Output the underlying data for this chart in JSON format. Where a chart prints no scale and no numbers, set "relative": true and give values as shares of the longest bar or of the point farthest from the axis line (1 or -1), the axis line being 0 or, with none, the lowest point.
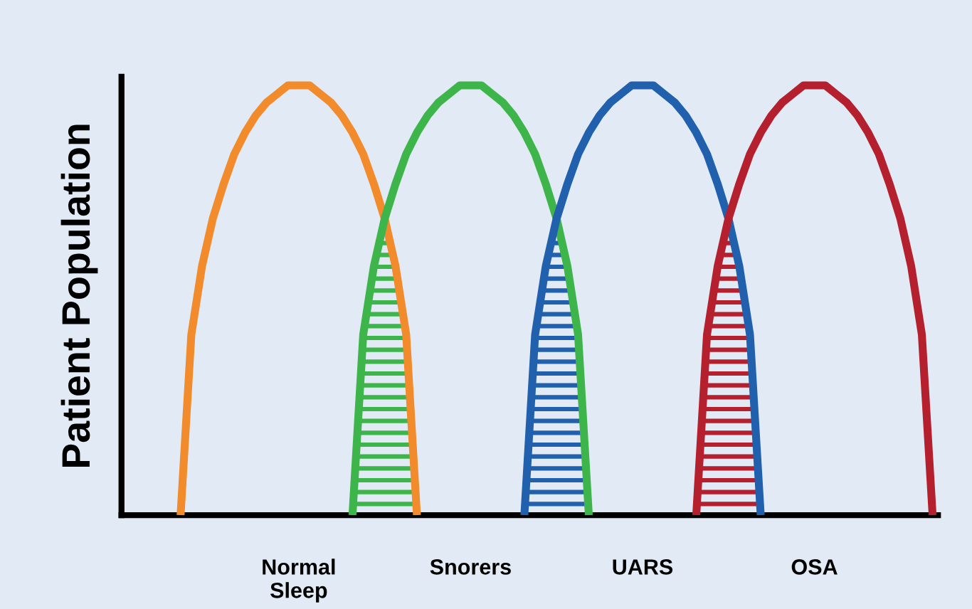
{
  "chart_data": {
    "type": "line",
    "relative": true,
    "ylabel": "Patient Population",
    "grid": false,
    "marker": "none",
    "line_style": "solid",
    "categories": [
      null,
      null,
      null,
      null,
      null,
      null,
      null,
      null,
      null,
      null,
      null,
      null,
      null,
      null,
      null,
      null,
      "Normal\nSleep",
      null,
      null,
      null,
      null,
      null,
      null,
      null,
      null,
      null,
      null,
      null,
      null,
      null,
      null,
      null,
      "Snorers",
      null,
      null,
      null,
      null,
      null,
      null,
      null,
      null,
      null,
      null,
      null,
      null,
      null,
      null,
      null,
      "UARS",
      null,
      null,
      null,
      null,
      null,
      null,
      null,
      null,
      null,
      null,
      null,
      null,
      null,
      null,
      null,
      "OSA",
      null,
      null,
      null,
      null,
      null,
      null,
      null,
      null,
      null,
      null,
      null
    ],
    "series": [
      {
        "type": "area",
        "color": "#3db54a",
        "values": [
          null,
          null,
          null,
          null,
          null,
          null,
          null,
          null,
          null,
          null,
          null,
          null,
          null,
          null,
          null,
          null,
          null,
          null,
          null,
          null,
          null,
          0,
          0.42,
          0.58,
          0.69,
          0.58,
          0.42,
          0,
          null,
          null,
          null,
          null,
          null,
          null,
          null,
          null,
          null,
          null,
          null,
          null,
          null,
          null,
          null,
          null,
          null,
          null,
          null,
          null,
          null,
          null,
          null,
          null,
          null,
          null,
          null,
          null,
          null,
          null,
          null,
          null,
          null,
          null,
          null,
          null,
          null,
          null,
          null,
          null,
          null,
          null,
          null,
          null,
          null,
          null,
          null,
          null
        ]
      },
      {
        "type": "area",
        "color": "#2060ac",
        "values": [
          null,
          null,
          null,
          null,
          null,
          null,
          null,
          null,
          null,
          null,
          null,
          null,
          null,
          null,
          null,
          null,
          null,
          null,
          null,
          null,
          null,
          null,
          null,
          null,
          null,
          null,
          null,
          null,
          null,
          null,
          null,
          null,
          null,
          null,
          null,
          null,
          null,
          0,
          0.42,
          0.58,
          0.69,
          0.58,
          0.42,
          0,
          null,
          null,
          null,
          null,
          null,
          null,
          null,
          null,
          null,
          null,
          null,
          null,
          null,
          null,
          null,
          null,
          null,
          null,
          null,
          null,
          null,
          null,
          null,
          null,
          null,
          null,
          null,
          null,
          null,
          null,
          null,
          null
        ]
      },
      {
        "type": "area",
        "color": "#b5202e",
        "values": [
          null,
          null,
          null,
          null,
          null,
          null,
          null,
          null,
          null,
          null,
          null,
          null,
          null,
          null,
          null,
          null,
          null,
          null,
          null,
          null,
          null,
          null,
          null,
          null,
          null,
          null,
          null,
          null,
          null,
          null,
          null,
          null,
          null,
          null,
          null,
          null,
          null,
          null,
          null,
          null,
          null,
          null,
          null,
          null,
          null,
          null,
          null,
          null,
          null,
          null,
          null,
          null,
          null,
          0,
          0.42,
          0.58,
          0.69,
          0.58,
          0.42,
          0,
          null,
          null,
          null,
          null,
          null,
          null,
          null,
          null,
          null,
          null,
          null,
          null,
          null,
          null,
          null,
          null
        ]
      },
      {
        "color": "#f28b2c",
        "values": [
          null,
          null,
          null,
          null,
          null,
          0,
          0.42,
          0.58,
          0.69,
          0.77,
          0.84,
          0.89,
          0.93,
          0.96,
          0.98,
          1,
          1,
          1,
          0.98,
          0.96,
          0.93,
          0.89,
          0.84,
          0.77,
          0.69,
          0.58,
          0.42,
          0,
          null,
          null,
          null,
          null,
          null,
          null,
          null,
          null,
          null,
          null,
          null,
          null,
          null,
          null,
          null,
          null,
          null,
          null,
          null,
          null,
          null,
          null,
          null,
          null,
          null,
          null,
          null,
          null,
          null,
          null,
          null,
          null,
          null,
          null,
          null,
          null,
          null,
          null,
          null,
          null,
          null,
          null,
          null,
          null,
          null,
          null,
          null,
          null
        ]
      },
      {
        "color": "#3db54a",
        "values": [
          null,
          null,
          null,
          null,
          null,
          null,
          null,
          null,
          null,
          null,
          null,
          null,
          null,
          null,
          null,
          null,
          null,
          null,
          null,
          null,
          null,
          0,
          0.42,
          0.58,
          0.69,
          0.77,
          0.84,
          0.89,
          0.93,
          0.96,
          0.98,
          1,
          1,
          1,
          0.98,
          0.96,
          0.93,
          0.89,
          0.84,
          0.77,
          0.69,
          0.58,
          0.42,
          0,
          null,
          null,
          null,
          null,
          null,
          null,
          null,
          null,
          null,
          null,
          null,
          null,
          null,
          null,
          null,
          null,
          null,
          null,
          null,
          null,
          null,
          null,
          null,
          null,
          null,
          null,
          null,
          null,
          null,
          null,
          null,
          null
        ]
      },
      {
        "color": "#2060ac",
        "values": [
          null,
          null,
          null,
          null,
          null,
          null,
          null,
          null,
          null,
          null,
          null,
          null,
          null,
          null,
          null,
          null,
          null,
          null,
          null,
          null,
          null,
          null,
          null,
          null,
          null,
          null,
          null,
          null,
          null,
          null,
          null,
          null,
          null,
          null,
          null,
          null,
          null,
          0,
          0.42,
          0.58,
          0.69,
          0.77,
          0.84,
          0.89,
          0.93,
          0.96,
          0.98,
          1,
          1,
          1,
          0.98,
          0.96,
          0.93,
          0.89,
          0.84,
          0.77,
          0.69,
          0.58,
          0.42,
          0,
          null,
          null,
          null,
          null,
          null,
          null,
          null,
          null,
          null,
          null,
          null,
          null,
          null,
          null,
          null,
          null
        ]
      },
      {
        "color": "#b5202e",
        "values": [
          null,
          null,
          null,
          null,
          null,
          null,
          null,
          null,
          null,
          null,
          null,
          null,
          null,
          null,
          null,
          null,
          null,
          null,
          null,
          null,
          null,
          null,
          null,
          null,
          null,
          null,
          null,
          null,
          null,
          null,
          null,
          null,
          null,
          null,
          null,
          null,
          null,
          null,
          null,
          null,
          null,
          null,
          null,
          null,
          null,
          null,
          null,
          null,
          null,
          null,
          null,
          null,
          null,
          0,
          0.42,
          0.58,
          0.69,
          0.77,
          0.84,
          0.89,
          0.93,
          0.96,
          0.98,
          1,
          1,
          1,
          0.98,
          0.96,
          0.93,
          0.89,
          0.84,
          0.77,
          0.69,
          0.58,
          0.42,
          0
        ]
      }
    ]
  }
}
